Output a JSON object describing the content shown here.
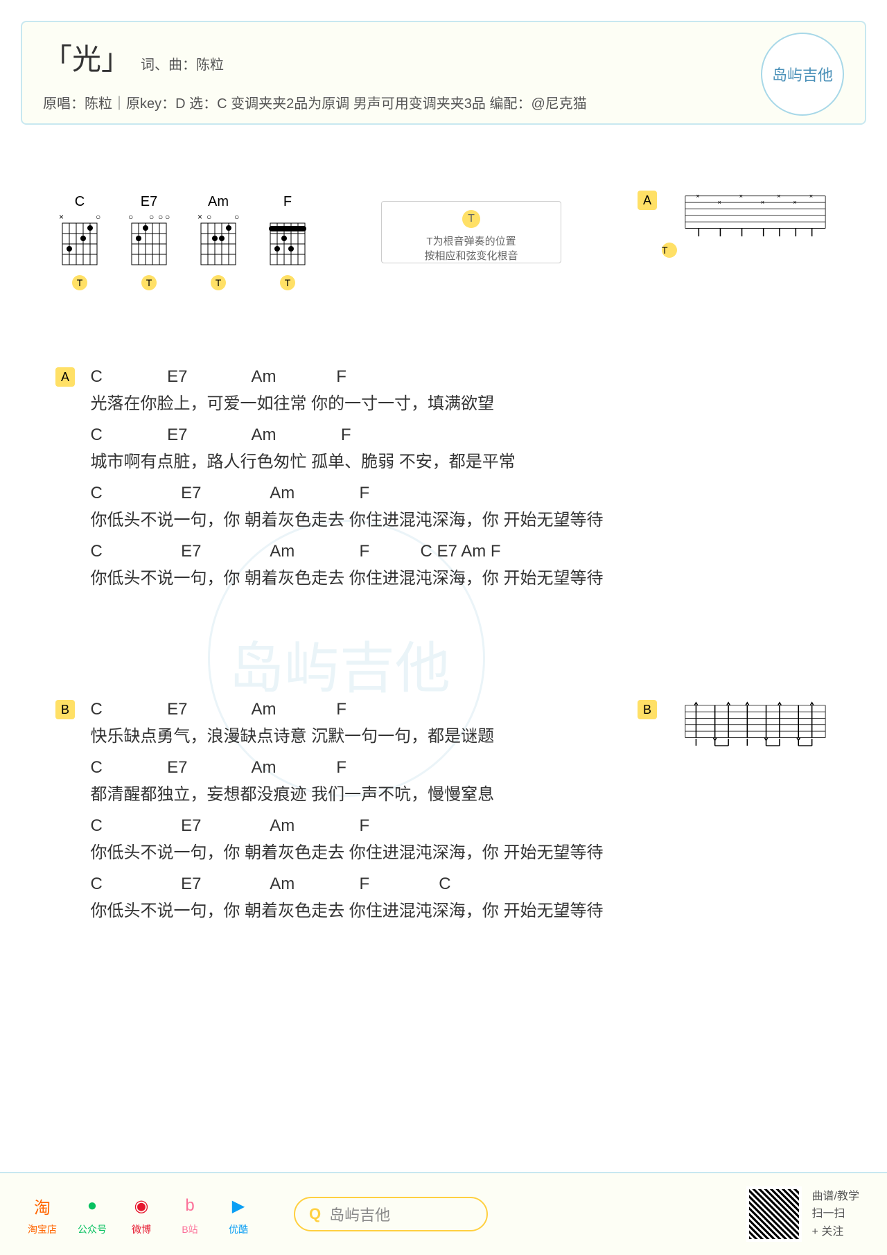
{
  "header": {
    "title": "「光」",
    "credits": "词、曲：陈粒",
    "meta": "原唱：陈粒｜原key：D 选：C 变调夹夹2品为原调 男声可用变调夹夹3品 编配：@尼克猫",
    "logo": "岛屿吉他"
  },
  "chords": {
    "list": [
      "C",
      "E7",
      "Am",
      "F"
    ],
    "t_label": "T"
  },
  "note_box": {
    "t": "T",
    "line1": "T为根音弹奏的位置",
    "line2": "按相应和弦变化根音"
  },
  "strum_a": {
    "badge": "A",
    "t": "T"
  },
  "strum_b": {
    "badge": "B"
  },
  "sections": {
    "a": {
      "badge": "A",
      "rows": [
        {
          "chords": "C              E7              Am             F",
          "lyrics": "光落在你脸上，可爱一如往常 你的一寸一寸，填满欲望"
        },
        {
          "chords": "C              E7              Am              F",
          "lyrics": "城市啊有点脏，路人行色匆忙 孤单、脆弱 不安，都是平常"
        },
        {
          "chords": "C                 E7               Am              F",
          "lyrics": "你低头不说一句，你 朝着灰色走去 你住进混沌深海，你 开始无望等待"
        },
        {
          "chords": "C                 E7               Am              F           C E7 Am F",
          "lyrics": "你低头不说一句，你 朝着灰色走去 你住进混沌深海，你 开始无望等待"
        }
      ]
    },
    "b": {
      "badge": "B",
      "rows": [
        {
          "chords": "C              E7              Am             F",
          "lyrics": "快乐缺点勇气，浪漫缺点诗意 沉默一句一句，都是谜题"
        },
        {
          "chords": "C              E7              Am             F",
          "lyrics": "都清醒都独立，妄想都没痕迹 我们一声不吭，慢慢窒息"
        },
        {
          "chords": "C                 E7               Am              F",
          "lyrics": "你低头不说一句，你 朝着灰色走去 你住进混沌深海，你 开始无望等待"
        },
        {
          "chords": "C                 E7               Am              F               C",
          "lyrics": "你低头不说一句，你 朝着灰色走去 你住进混沌深海，你 开始无望等待"
        }
      ]
    }
  },
  "footer": {
    "socials": [
      {
        "label": "淘宝店",
        "color": "#ff6600",
        "icon": "淘"
      },
      {
        "label": "公众号",
        "color": "#07c160",
        "icon": "●"
      },
      {
        "label": "微博",
        "color": "#e6162d",
        "icon": "◉"
      },
      {
        "label": "B站",
        "color": "#fb7299",
        "icon": "b"
      },
      {
        "label": "优酷",
        "color": "#0b9ff4",
        "icon": "▶"
      }
    ],
    "search_icon": "Q",
    "search_text": "岛屿吉他",
    "qr": {
      "line1": "曲谱/教学",
      "line2": "扫一扫",
      "line3": "+ 关注"
    }
  },
  "watermark": "岛屿吉他"
}
